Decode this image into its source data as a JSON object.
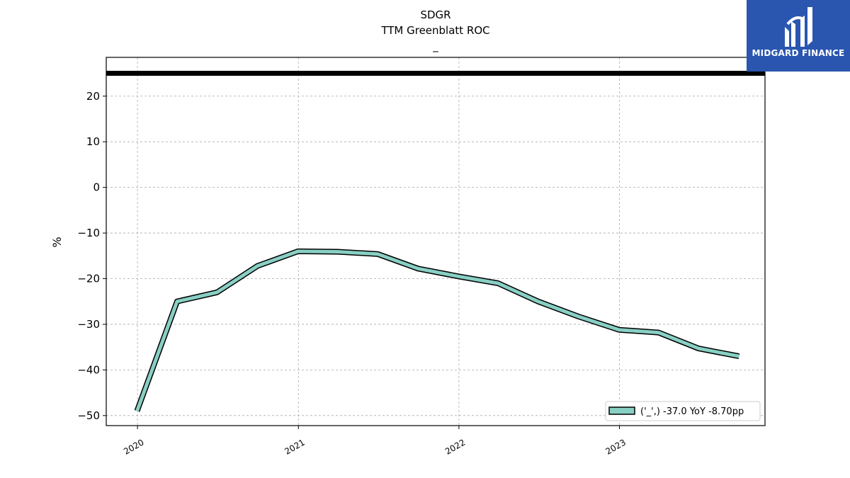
{
  "brand": {
    "name": "MIDGARD FINANCE",
    "color": "#2a56b0"
  },
  "chart_data": {
    "type": "line",
    "title": "SDGR",
    "subtitle": "TTM Greenblatt ROC",
    "subtitle2": "_",
    "xlabel": "",
    "ylabel": "%",
    "x_ticks": [
      "2020",
      "2021",
      "2022",
      "2023"
    ],
    "y_ticks": [
      20,
      10,
      0,
      -10,
      -20,
      -30,
      -40,
      -50
    ],
    "ylim": [
      -52.2,
      28.5
    ],
    "xlim": [
      "2019-10-22",
      "2023-11-28"
    ],
    "grid": true,
    "legend_position": "lower-right",
    "reference_line": {
      "y": 25,
      "color": "#000000"
    },
    "series": [
      {
        "name": "('_',) -37.0 YoY -8.70pp",
        "color": "#88cfc4",
        "x": [
          "2019-12-31",
          "2020-03-31",
          "2020-06-30",
          "2020-09-30",
          "2020-12-31",
          "2021-03-31",
          "2021-06-30",
          "2021-09-30",
          "2021-12-31",
          "2022-03-31",
          "2022-06-30",
          "2022-09-30",
          "2022-12-31",
          "2023-03-31",
          "2023-06-30",
          "2023-09-30"
        ],
        "values": [
          -49.0,
          -25.0,
          -23.0,
          -17.2,
          -14.0,
          -14.1,
          -14.6,
          -17.8,
          -19.5,
          -21.0,
          -25.0,
          -28.3,
          -31.2,
          -31.8,
          -35.3,
          -37.0
        ]
      }
    ]
  }
}
